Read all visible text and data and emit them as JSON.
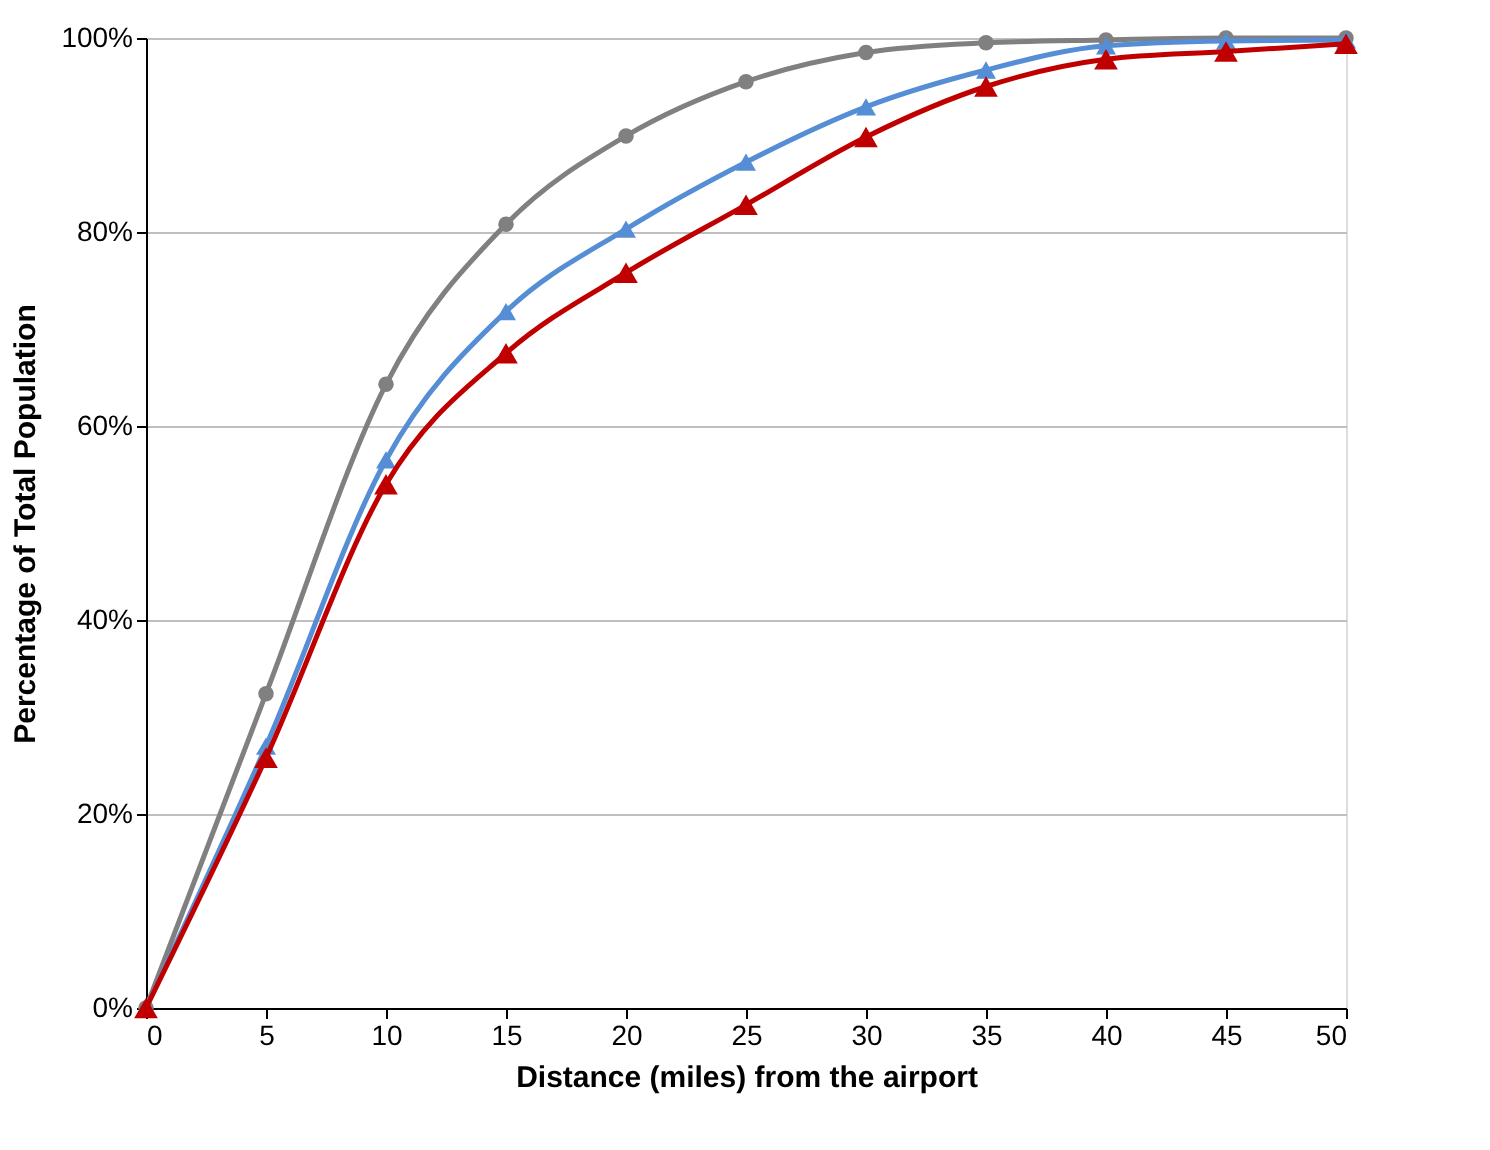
{
  "chart_data": {
    "type": "line",
    "xlabel": "Distance (miles) from the airport",
    "ylabel": "Percentage of Total Population",
    "x": [
      0,
      5,
      10,
      15,
      20,
      25,
      30,
      35,
      40,
      45,
      50
    ],
    "series": [
      {
        "color": "#808080",
        "marker": "circle",
        "values": [
          0,
          32.4,
          64.3,
          80.8,
          89.9,
          95.5,
          98.5,
          99.5,
          99.8,
          100,
          100
        ]
      },
      {
        "color": "#558ed5",
        "marker": "triangle",
        "values": [
          0,
          27,
          56.5,
          71.8,
          80.3,
          87.2,
          92.9,
          96.7,
          99.2,
          99.7,
          99.8
        ]
      },
      {
        "color": "#c00000",
        "marker": "triangle",
        "values": [
          0,
          25.8,
          54,
          67.5,
          75.8,
          82.8,
          89.8,
          95,
          97.8,
          98.6,
          99.4
        ]
      }
    ],
    "xlim": [
      0,
      50
    ],
    "xticks": [
      0,
      5,
      10,
      15,
      20,
      25,
      30,
      35,
      40,
      45,
      50
    ],
    "ylim": [
      0,
      100
    ],
    "yticks": [
      {
        "value": 0,
        "label": "0%"
      },
      {
        "value": 20,
        "label": "20%"
      },
      {
        "value": 40,
        "label": "40%"
      },
      {
        "value": 60,
        "label": "60%"
      },
      {
        "value": 80,
        "label": "80%"
      },
      {
        "value": 100,
        "label": "100%"
      }
    ],
    "grid": "y"
  }
}
